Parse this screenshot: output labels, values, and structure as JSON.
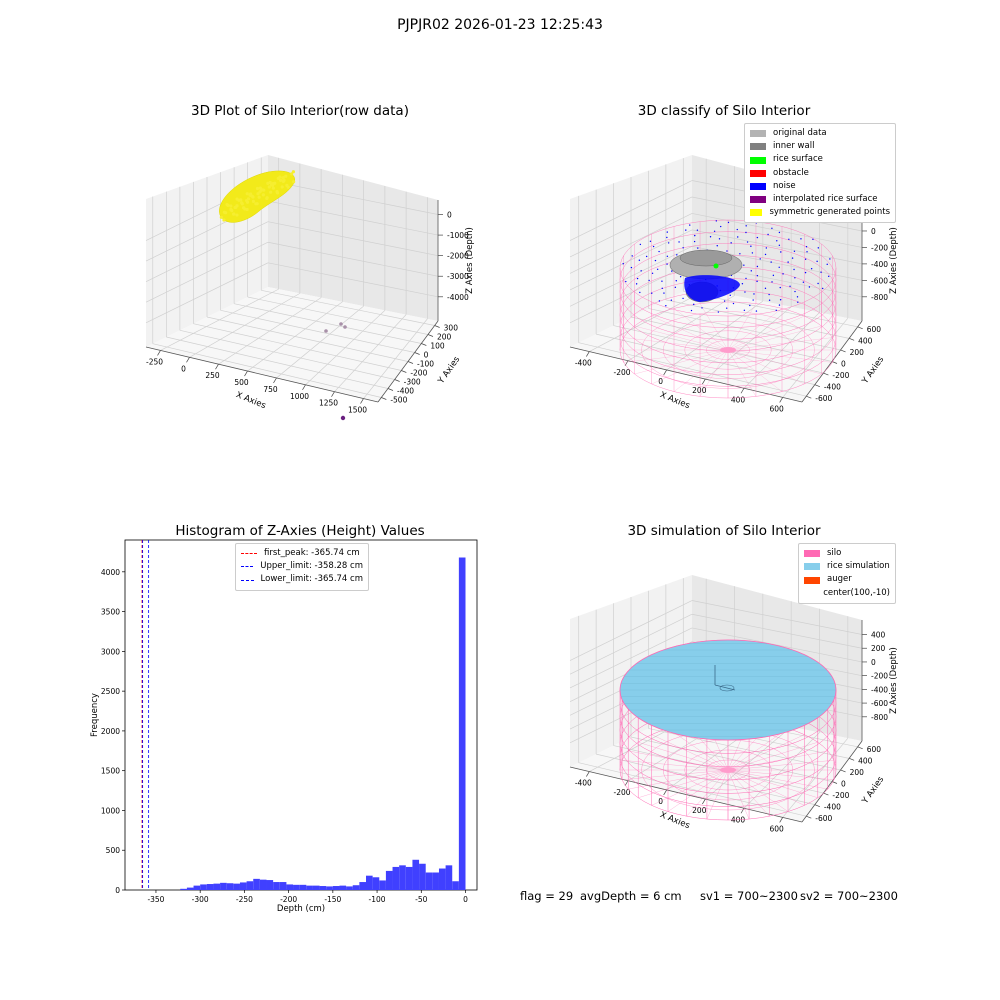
{
  "figure": {
    "suptitle": "PJPJR02 2026-01-23 12:25:43",
    "footer": {
      "flag": "flag = 29",
      "avg": "avgDepth = 6 cm",
      "sv1": "sv1 = 700~2300",
      "sv2": "sv2 = 700~2300"
    }
  },
  "colors": {
    "rawPoints": "#f2ea1a",
    "silo": "#ff69b4",
    "rice": "#87ceeb",
    "noise": "#0000ff",
    "gray": "#808080",
    "histBar": "#4040ff"
  },
  "chart_data": [
    {
      "type": "scatter3d",
      "title": "3D Plot of Silo Interior(row data)",
      "xlabel": "X Axies",
      "ylabel": "Y Axies",
      "zlabel": "Z Axies (Depth)",
      "xticks": [
        "-250",
        "0",
        "250",
        "500",
        "750",
        "1000",
        "1250",
        "1500"
      ],
      "yticks": [
        "-500",
        "-400",
        "-300",
        "-200",
        "-100",
        "0",
        "100",
        "200",
        "300"
      ],
      "zticks": [
        "-4000",
        "-3000",
        "-2000",
        "-1000",
        "0"
      ],
      "clusters": [
        {
          "name": "",
          "color": "#f2ea1a",
          "x_range": [
            -300,
            200
          ],
          "z_approx": -300
        },
        {
          "name": "",
          "color": "#a080a0",
          "points": [
            [
              900,
              250,
              -3800
            ],
            [
              1000,
              150,
              -3900
            ]
          ]
        },
        {
          "name": "",
          "color": "#6a2080",
          "points": [
            [
              1450,
              -450,
              -4100
            ]
          ]
        }
      ]
    },
    {
      "type": "scatter3d",
      "title": "3D classify of Silo Interior",
      "xlabel": "X Axies",
      "ylabel": "Y Axies",
      "zlabel": "Z Axies (Depth)",
      "xticks": [
        "-400",
        "-200",
        "0",
        "200",
        "400",
        "600"
      ],
      "yticks": [
        "-600",
        "-400",
        "-200",
        "0",
        "200",
        "400",
        "600"
      ],
      "zticks": [
        "-800",
        "-600",
        "-400",
        "-200",
        "0",
        "200"
      ],
      "legend": [
        {
          "label": "original data",
          "color": "#b3b3b3"
        },
        {
          "label": "inner wall",
          "color": "#808080"
        },
        {
          "label": "rice surface",
          "color": "#00ff00"
        },
        {
          "label": "obstacle",
          "color": "#ff0000"
        },
        {
          "label": "noise",
          "color": "#0000ff"
        },
        {
          "label": "interpolated rice surface",
          "color": "#800080"
        },
        {
          "label": "symmetric generated points",
          "color": "#ffff00"
        }
      ]
    },
    {
      "type": "bar",
      "title": "Histogram of Z-Axies (Height) Values",
      "xlabel": "Depth (cm)",
      "ylabel": "Frequency",
      "xlim": [
        -385,
        13
      ],
      "ylim": [
        0,
        4400
      ],
      "xticks": [
        -350,
        -300,
        -250,
        -200,
        -150,
        -100,
        -50,
        0
      ],
      "yticks": [
        0,
        500,
        1000,
        1500,
        2000,
        2500,
        3000,
        3500,
        4000
      ],
      "bin_width": 7.5,
      "bin_starts": [
        -322.5,
        -315,
        -307.5,
        -300,
        -292.5,
        -285,
        -277.5,
        -270,
        -262.5,
        -255,
        -247.5,
        -240,
        -232.5,
        -225,
        -217.5,
        -210,
        -202.5,
        -195,
        -187.5,
        -180,
        -172.5,
        -165,
        -157.5,
        -150,
        -142.5,
        -135,
        -127.5,
        -120,
        -112.5,
        -105,
        -97.5,
        -90,
        -82.5,
        -75,
        -67.5,
        -60,
        -52.5,
        -45,
        -37.5,
        -30,
        -22.5,
        -15,
        -7.5
      ],
      "values": [
        15,
        30,
        55,
        70,
        75,
        80,
        90,
        85,
        80,
        95,
        110,
        140,
        130,
        125,
        100,
        100,
        70,
        65,
        65,
        55,
        55,
        50,
        45,
        50,
        55,
        45,
        60,
        100,
        180,
        160,
        120,
        240,
        290,
        310,
        290,
        380,
        330,
        220,
        220,
        270,
        310,
        110,
        4180
      ],
      "vlines": [
        {
          "label": "first_peak: -365.74 cm",
          "x": -365.74,
          "color": "#ff0000"
        },
        {
          "label": "Upper_limit: -358.28 cm",
          "x": -358.28,
          "color": "#0000ff"
        },
        {
          "label": "Lower_limit: -365.74 cm",
          "x": -365.74,
          "color": "#0000ff"
        }
      ]
    },
    {
      "type": "surface3d",
      "title": "3D simulation of Silo Interior",
      "xlabel": "X Axies",
      "ylabel": "Y Axies",
      "zlabel": "Z Axies (Depth)",
      "xticks": [
        "-400",
        "-200",
        "0",
        "200",
        "400",
        "600"
      ],
      "yticks": [
        "-600",
        "-400",
        "-200",
        "0",
        "200",
        "400",
        "600"
      ],
      "zticks": [
        "-800",
        "-600",
        "-400",
        "-200",
        "0",
        "200",
        "400"
      ],
      "legend": [
        {
          "label": "silo",
          "color": "#ff69b4"
        },
        {
          "label": "rice simulation",
          "color": "#87ceeb"
        },
        {
          "label": "auger",
          "color": "#ff4500"
        },
        {
          "label": "center(100,-10)",
          "color": ""
        }
      ]
    }
  ]
}
